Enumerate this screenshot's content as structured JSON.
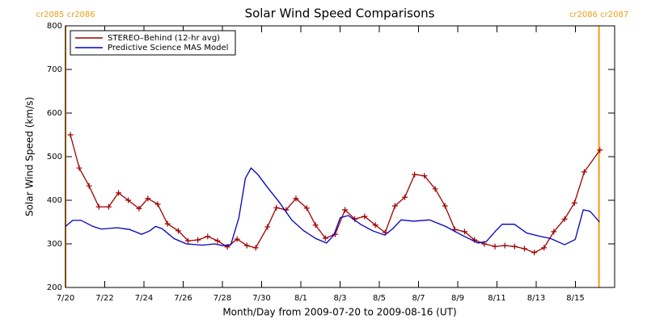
{
  "chart_data": {
    "type": "line",
    "title": "Solar Wind Speed Comparisons",
    "xlabel": "Month/Day from 2009-07-20 to 2009-08-16 (UT)",
    "ylabel": "Solar Wind Speed (km/s)",
    "xlim": [
      0,
      28
    ],
    "ylim": [
      200,
      800
    ],
    "xticks": [
      {
        "value": 0,
        "label": "7/20"
      },
      {
        "value": 2,
        "label": "7/22"
      },
      {
        "value": 4,
        "label": "7/24"
      },
      {
        "value": 6,
        "label": "7/26"
      },
      {
        "value": 8,
        "label": "7/28"
      },
      {
        "value": 10,
        "label": "7/30"
      },
      {
        "value": 12,
        "label": "8/1"
      },
      {
        "value": 14,
        "label": "8/3"
      },
      {
        "value": 16,
        "label": "8/5"
      },
      {
        "value": 18,
        "label": "8/7"
      },
      {
        "value": 20,
        "label": "8/9"
      },
      {
        "value": 22,
        "label": "8/11"
      },
      {
        "value": 24,
        "label": "8/13"
      },
      {
        "value": 26,
        "label": "8/15"
      }
    ],
    "yticks": [
      200,
      300,
      400,
      500,
      600,
      700,
      800
    ],
    "annotations": [
      {
        "text": "cr2085 cr2086",
        "x": 0,
        "color": "#f39c12"
      },
      {
        "text": "cr2086 cr2087",
        "x": 27.2,
        "color": "#f39c12"
      }
    ],
    "series": [
      {
        "name": "STEREO–Behind (12-hr avg)",
        "color": "#a00000",
        "markers": true,
        "x": [
          0.25,
          0.7,
          1.2,
          1.7,
          2.2,
          2.7,
          3.2,
          3.75,
          4.2,
          4.7,
          5.2,
          5.75,
          6.25,
          6.75,
          7.25,
          7.75,
          8.25,
          8.75,
          9.25,
          9.7,
          10.3,
          10.75,
          11.25,
          11.75,
          12.3,
          12.75,
          13.25,
          13.75,
          14.25,
          14.75,
          15.25,
          15.8,
          16.3,
          16.8,
          17.3,
          17.8,
          18.3,
          18.85,
          19.35,
          19.85,
          20.35,
          20.85,
          21.35,
          21.9,
          22.4,
          22.9,
          23.4,
          23.9,
          24.4,
          24.9,
          25.45,
          25.95,
          26.45,
          27.25
        ],
        "values": [
          550,
          474,
          433,
          385,
          385,
          417,
          400,
          381,
          404,
          391,
          346,
          330,
          307,
          309,
          317,
          307,
          293,
          311,
          296,
          291,
          339,
          383,
          378,
          404,
          382,
          343,
          313,
          322,
          378,
          357,
          363,
          343,
          326,
          387,
          407,
          459,
          456,
          426,
          387,
          333,
          328,
          309,
          300,
          294,
          296,
          294,
          289,
          280,
          291,
          328,
          357,
          394,
          465,
          515
        ]
      },
      {
        "name": "Predictive Science MAS Model",
        "color": "#0000c0",
        "markers": false,
        "x": [
          0,
          0.37,
          0.79,
          1.4,
          1.82,
          2.64,
          3.26,
          3.88,
          4.3,
          4.59,
          4.92,
          5.54,
          6.16,
          6.98,
          7.6,
          8.02,
          8.43,
          8.84,
          9.17,
          9.46,
          9.79,
          10.29,
          10.91,
          11.53,
          12.15,
          12.77,
          13.31,
          13.68,
          14.01,
          14.42,
          15.04,
          15.66,
          16.28,
          16.69,
          17.11,
          17.73,
          18.55,
          19.38,
          20.21,
          21.03,
          21.45,
          21.94,
          22.27,
          22.89,
          23.51,
          24.13,
          24.75,
          25.45,
          25.99,
          26.4,
          26.74,
          27.23
        ],
        "values": [
          340,
          354,
          354,
          340,
          334,
          337,
          333,
          322,
          330,
          340,
          335,
          312,
          300,
          297,
          300,
          296,
          298,
          360,
          450,
          474,
          460,
          430,
          395,
          355,
          330,
          312,
          302,
          320,
          360,
          365,
          345,
          330,
          320,
          335,
          355,
          352,
          355,
          340,
          320,
          302,
          305,
          330,
          345,
          345,
          325,
          318,
          312,
          298,
          310,
          378,
          375,
          350
        ]
      }
    ],
    "legend": "upper left"
  }
}
